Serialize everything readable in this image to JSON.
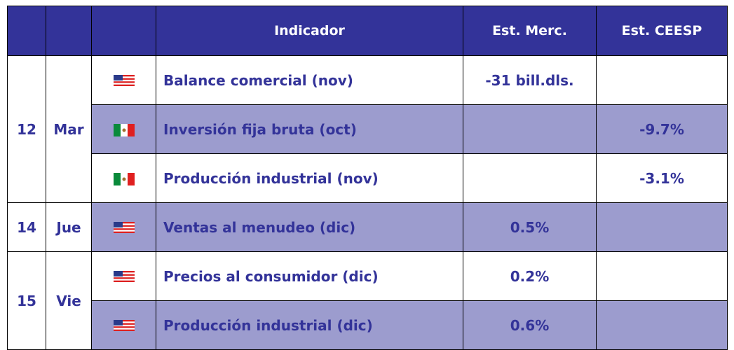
{
  "table": {
    "header": [
      "Indicador",
      "Est. Merc.",
      "Est. CEESP"
    ],
    "groups": [
      {
        "day": "12",
        "month": "Mar",
        "rows": [
          {
            "indicador": "Balance comercial (nov)",
            "merc": "-31 bill.dls."
          },
          {
            "indicador": "Inversión fija bruta (oct)",
            "ceesp": "-9.7%"
          },
          {
            "indicador": "Producción industrial (nov)",
            "ceesp": "-3.1%"
          }
        ]
      },
      {
        "day": "14",
        "month": "Jue",
        "rows": [
          {
            "indicador": "Ventas al menudeo (dic)",
            "merc": "0.5%"
          }
        ]
      },
      {
        "day": "15",
        "month": "Vie",
        "rows": [
          {
            "indicador": "Precios al consumidor (dic)",
            "merc": "0.2%"
          },
          {
            "indicador": "Producción industrial (dic)",
            "merc": "0.6%"
          }
        ]
      }
    ]
  }
}
